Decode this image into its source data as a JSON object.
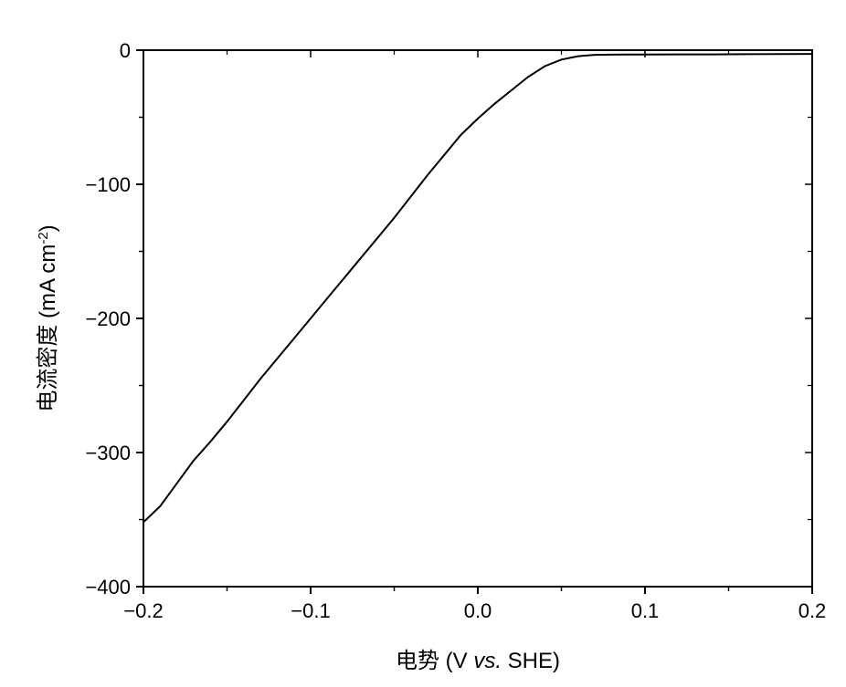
{
  "chart_data": {
    "type": "line",
    "xlabel": "电势 (V vs. SHE)",
    "xlabel_parts": {
      "prefix": "电势 (V ",
      "italic": "vs.",
      "suffix": " SHE)"
    },
    "ylabel": "电流密度 (mA cm-2)",
    "ylabel_parts": {
      "prefix": "电流密度 (mA cm",
      "superscript": "-2",
      "suffix": ")"
    },
    "xlim": [
      -0.2,
      0.2
    ],
    "ylim": [
      -400,
      0
    ],
    "x_ticks": [
      -0.2,
      -0.1,
      0.0,
      0.1,
      0.2
    ],
    "x_tick_labels": [
      "−0.2",
      "−0.1",
      "0.0",
      "0.1",
      "0.2"
    ],
    "y_ticks": [
      0,
      -100,
      -200,
      -300,
      -400
    ],
    "y_tick_labels": [
      "0",
      "−100",
      "−200",
      "−300",
      "−400"
    ],
    "grid": false,
    "legend": "none",
    "line_color": "#000000",
    "series": [
      {
        "x": [
          -0.2,
          -0.19,
          -0.18,
          -0.17,
          -0.16,
          -0.15,
          -0.14,
          -0.13,
          -0.12,
          -0.11,
          -0.1,
          -0.09,
          -0.08,
          -0.07,
          -0.06,
          -0.05,
          -0.04,
          -0.03,
          -0.02,
          -0.01,
          0.0,
          0.01,
          0.02,
          0.03,
          0.04,
          0.05,
          0.06,
          0.07,
          0.08,
          0.09,
          0.1,
          0.12,
          0.14,
          0.16,
          0.18,
          0.2
        ],
        "y": [
          -352,
          -340,
          -323,
          -306,
          -292,
          -277,
          -261,
          -245,
          -230,
          -215,
          -200,
          -185,
          -170,
          -155,
          -140,
          -125,
          -109,
          -93,
          -78,
          -63,
          -51,
          -40,
          -30,
          -20,
          -12,
          -7,
          -4.5,
          -3.5,
          -3.3,
          -3.2,
          -3.2,
          -3.1,
          -3.1,
          -3.0,
          -2.9,
          -2.8
        ]
      }
    ]
  }
}
